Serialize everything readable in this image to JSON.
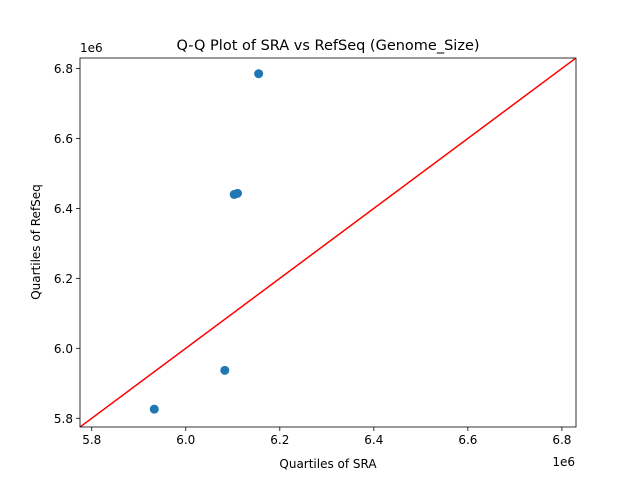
{
  "chart_data": {
    "type": "scatter",
    "title": "Q-Q Plot of SRA vs RefSeq (Genome_Size)",
    "xlabel": "Quartiles of SRA",
    "ylabel": "Quartiles of RefSeq",
    "x_offset_label": "1e6",
    "y_offset_label": "1e6",
    "xlim": [
      5.775,
      6.83
    ],
    "ylim": [
      5.775,
      6.83
    ],
    "x_ticks": [
      5.8,
      6.0,
      6.2,
      6.4,
      6.6,
      6.8
    ],
    "y_ticks": [
      5.8,
      6.0,
      6.2,
      6.4,
      6.6,
      6.8
    ],
    "x_tick_labels": [
      "5.8",
      "6.0",
      "6.2",
      "6.4",
      "6.6",
      "6.8"
    ],
    "y_tick_labels": [
      "5.8",
      "6.0",
      "6.2",
      "6.4",
      "6.6",
      "6.8"
    ],
    "points": [
      {
        "x": 5.933,
        "y": 5.826
      },
      {
        "x": 6.083,
        "y": 5.937
      },
      {
        "x": 6.103,
        "y": 6.44
      },
      {
        "x": 6.11,
        "y": 6.443
      },
      {
        "x": 6.155,
        "y": 6.785
      }
    ],
    "reference_line": {
      "from": [
        5.775,
        5.775
      ],
      "to": [
        6.83,
        6.83
      ]
    },
    "grid": false,
    "colors": {
      "points": "#1f77b4",
      "line": "#ff0000"
    }
  }
}
